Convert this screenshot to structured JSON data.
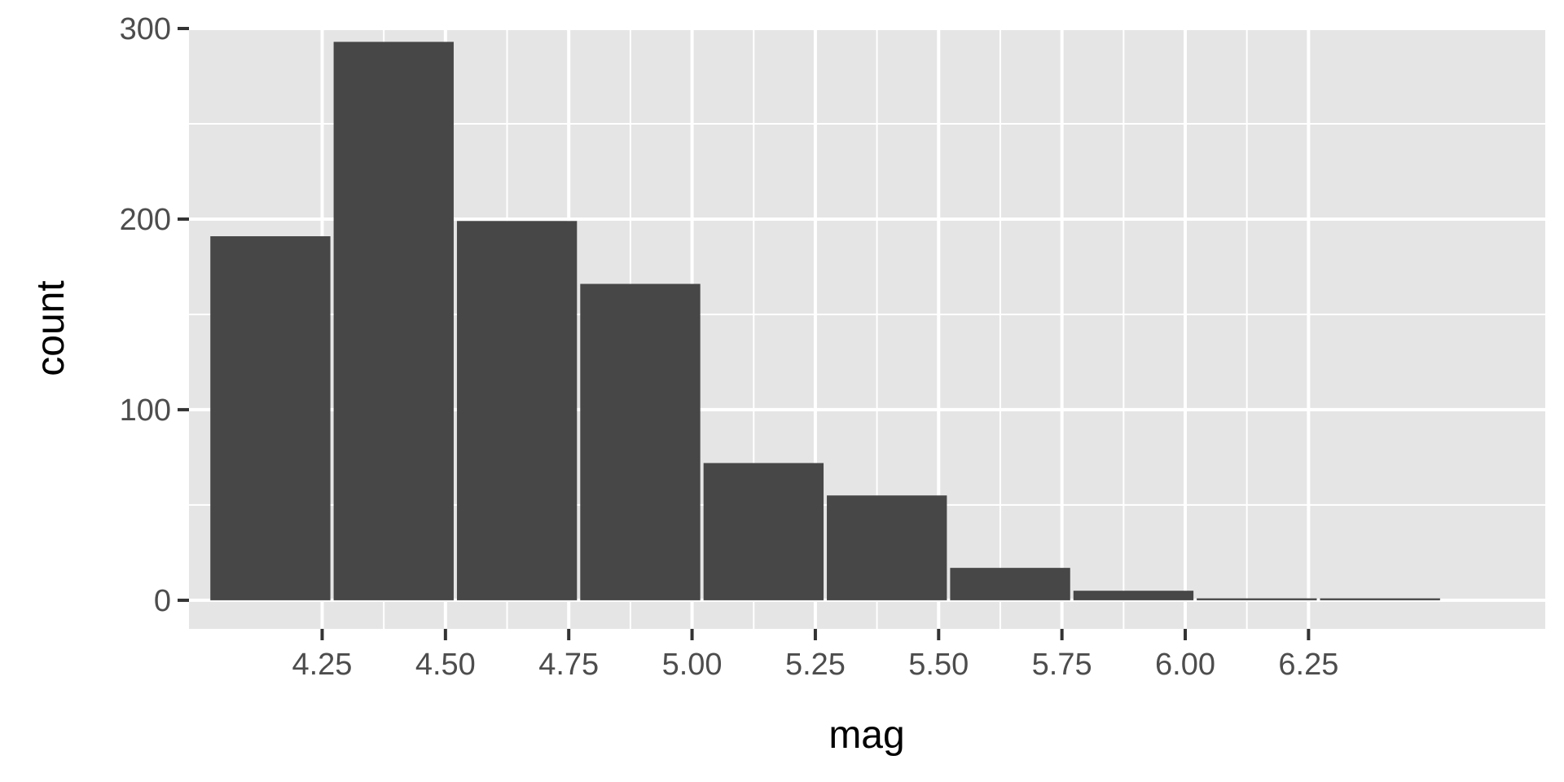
{
  "chart_data": {
    "type": "bar",
    "xlabel": "mag",
    "ylabel": "count",
    "xlim": [
      3.98,
      6.73
    ],
    "ylim": [
      -15,
      300
    ],
    "bin_width": 0.25,
    "x_ticks": [
      4.25,
      4.5,
      4.75,
      5.0,
      5.25,
      5.5,
      5.75,
      6.0,
      6.25
    ],
    "x_tick_labels": [
      "4.25",
      "4.50",
      "4.75",
      "5.00",
      "5.25",
      "5.50",
      "5.75",
      "6.00",
      "6.25"
    ],
    "y_ticks": [
      0,
      100,
      200,
      300
    ],
    "y_tick_labels": [
      "0",
      "100",
      "200",
      "300"
    ],
    "bins": [
      {
        "start": 4.02,
        "end": 4.27,
        "count": 191
      },
      {
        "start": 4.27,
        "end": 4.52,
        "count": 293
      },
      {
        "start": 4.52,
        "end": 4.77,
        "count": 199
      },
      {
        "start": 4.77,
        "end": 5.02,
        "count": 166
      },
      {
        "start": 5.02,
        "end": 5.27,
        "count": 72
      },
      {
        "start": 5.27,
        "end": 5.52,
        "count": 55
      },
      {
        "start": 5.52,
        "end": 5.77,
        "count": 17
      },
      {
        "start": 5.77,
        "end": 6.02,
        "count": 5
      },
      {
        "start": 6.02,
        "end": 6.27,
        "count": 1
      },
      {
        "start": 6.27,
        "end": 6.52,
        "count": 1
      }
    ],
    "grid": true,
    "colors": {
      "panel": "#e5e5e5",
      "grid": "#ffffff",
      "bar": "#474747",
      "tick": "#333333"
    }
  }
}
